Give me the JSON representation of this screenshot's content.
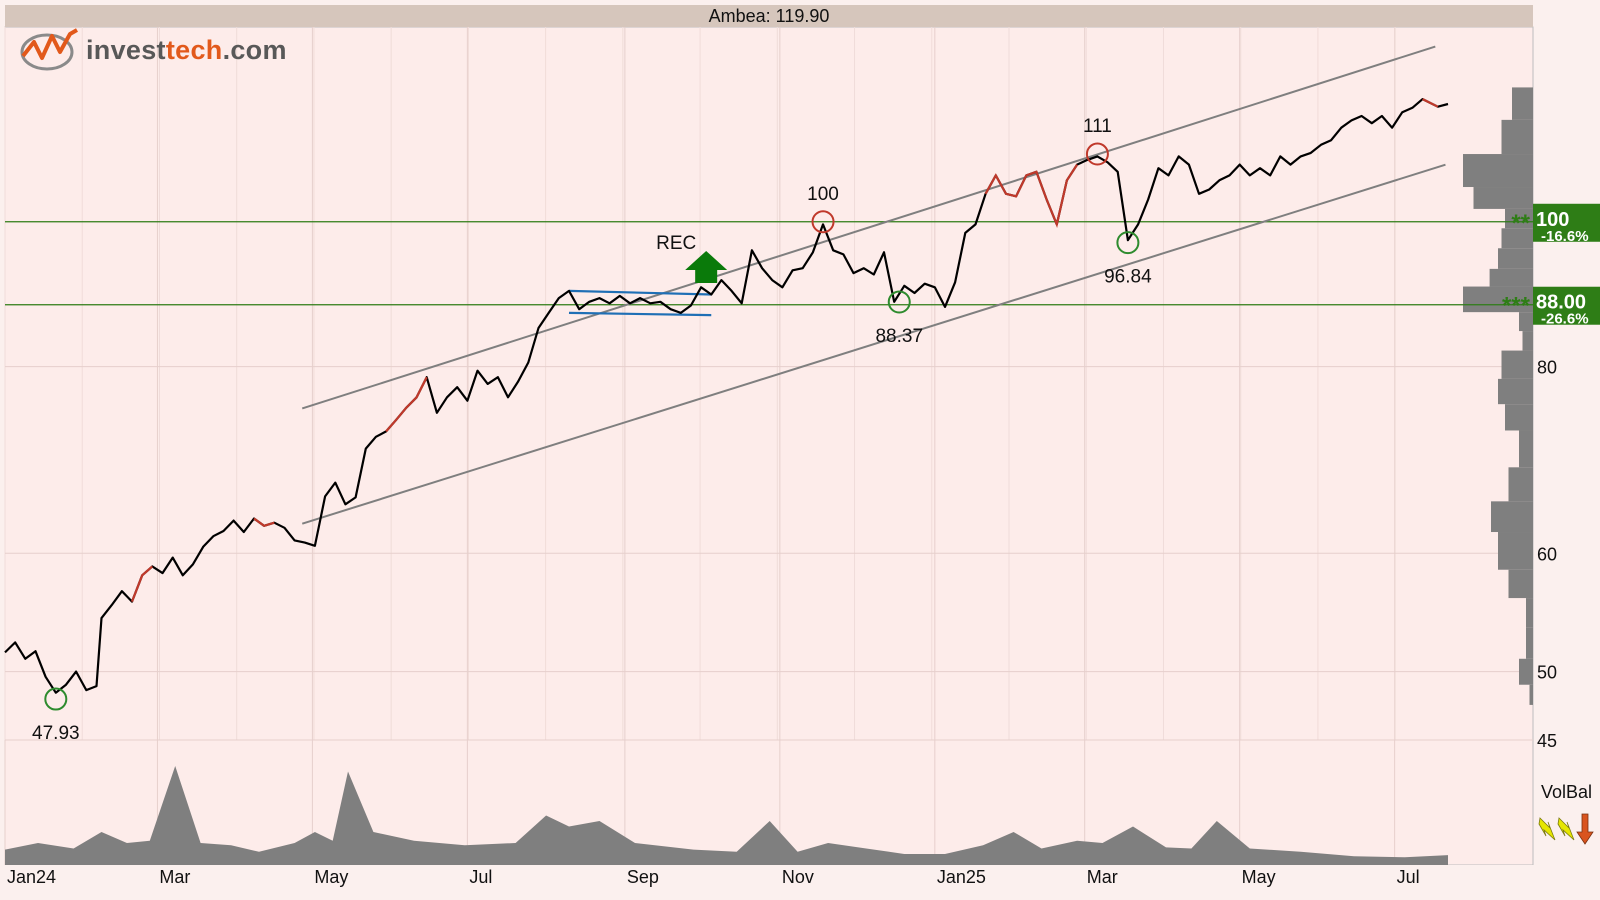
{
  "header": {
    "title": "Ambea: 119.90"
  },
  "logo": {
    "brand_prefix": "invest",
    "brand_accent": "tech",
    "brand_suffix": ".com"
  },
  "chart_data": {
    "type": "line",
    "title": "Ambea: 119.90",
    "x_range": [
      "2024-01-01",
      "2025-07-22"
    ],
    "x_ticks": [
      {
        "label": "Jan24",
        "date": "2024-01-01"
      },
      {
        "label": "Mar",
        "date": "2024-03-01"
      },
      {
        "label": "May",
        "date": "2024-05-01"
      },
      {
        "label": "Jul",
        "date": "2024-07-01"
      },
      {
        "label": "Sep",
        "date": "2024-09-01"
      },
      {
        "label": "Nov",
        "date": "2024-11-01"
      },
      {
        "label": "Jan25",
        "date": "2025-01-01"
      },
      {
        "label": "Mar",
        "date": "2025-03-01"
      },
      {
        "label": "May",
        "date": "2025-05-01"
      },
      {
        "label": "Jul",
        "date": "2025-07-01"
      }
    ],
    "y_scale": "log",
    "y_range": [
      45,
      135
    ],
    "y_ticks": [
      45,
      50,
      60,
      80
    ],
    "grid": true,
    "series": [
      {
        "name": "",
        "color": "#000000",
        "points": [
          [
            "2024-01-01",
            51.5
          ],
          [
            "2024-01-05",
            52.3
          ],
          [
            "2024-01-09",
            51.0
          ],
          [
            "2024-01-13",
            51.6
          ],
          [
            "2024-01-17",
            49.6
          ],
          [
            "2024-01-21",
            48.4
          ],
          [
            "2024-01-25",
            49.0
          ],
          [
            "2024-01-29",
            50.0
          ],
          [
            "2024-02-02",
            48.6
          ],
          [
            "2024-02-06",
            48.9
          ],
          [
            "2024-02-08",
            54.3
          ],
          [
            "2024-02-12",
            55.4
          ],
          [
            "2024-02-16",
            56.6
          ],
          [
            "2024-02-20",
            55.7
          ],
          [
            "2024-02-24",
            58.0
          ],
          [
            "2024-02-28",
            58.8
          ],
          [
            "2024-03-03",
            58.2
          ],
          [
            "2024-03-07",
            59.6
          ],
          [
            "2024-03-11",
            58.0
          ],
          [
            "2024-03-15",
            59.0
          ],
          [
            "2024-03-19",
            60.6
          ],
          [
            "2024-03-23",
            61.6
          ],
          [
            "2024-03-27",
            62.1
          ],
          [
            "2024-03-31",
            63.1
          ],
          [
            "2024-04-04",
            62.0
          ],
          [
            "2024-04-08",
            63.3
          ],
          [
            "2024-04-12",
            62.6
          ],
          [
            "2024-04-16",
            62.9
          ],
          [
            "2024-04-20",
            62.4
          ],
          [
            "2024-04-24",
            61.2
          ],
          [
            "2024-04-28",
            61.0
          ],
          [
            "2024-05-02",
            60.7
          ],
          [
            "2024-05-06",
            65.5
          ],
          [
            "2024-05-10",
            66.9
          ],
          [
            "2024-05-14",
            64.7
          ],
          [
            "2024-05-18",
            65.4
          ],
          [
            "2024-05-22",
            70.5
          ],
          [
            "2024-05-26",
            71.8
          ],
          [
            "2024-05-30",
            72.4
          ],
          [
            "2024-06-03",
            73.7
          ],
          [
            "2024-06-07",
            75.1
          ],
          [
            "2024-06-11",
            76.3
          ],
          [
            "2024-06-15",
            78.7
          ],
          [
            "2024-06-19",
            74.5
          ],
          [
            "2024-06-23",
            76.3
          ],
          [
            "2024-06-27",
            77.5
          ],
          [
            "2024-07-01",
            75.9
          ],
          [
            "2024-07-05",
            79.5
          ],
          [
            "2024-07-09",
            77.9
          ],
          [
            "2024-07-13",
            78.7
          ],
          [
            "2024-07-17",
            76.3
          ],
          [
            "2024-07-21",
            78.2
          ],
          [
            "2024-07-25",
            80.5
          ],
          [
            "2024-07-29",
            84.9
          ],
          [
            "2024-08-02",
            86.9
          ],
          [
            "2024-08-06",
            88.9
          ],
          [
            "2024-08-10",
            89.9
          ],
          [
            "2024-08-14",
            87.4
          ],
          [
            "2024-08-18",
            88.4
          ],
          [
            "2024-08-22",
            88.9
          ],
          [
            "2024-08-26",
            88.2
          ],
          [
            "2024-08-30",
            89.2
          ],
          [
            "2024-09-03",
            88.2
          ],
          [
            "2024-09-07",
            88.9
          ],
          [
            "2024-09-11",
            88.2
          ],
          [
            "2024-09-15",
            88.4
          ],
          [
            "2024-09-19",
            87.4
          ],
          [
            "2024-09-23",
            86.9
          ],
          [
            "2024-09-27",
            87.9
          ],
          [
            "2024-10-01",
            90.4
          ],
          [
            "2024-10-05",
            89.4
          ],
          [
            "2024-10-09",
            91.4
          ],
          [
            "2024-10-13",
            89.9
          ],
          [
            "2024-10-17",
            88.2
          ],
          [
            "2024-10-21",
            95.7
          ],
          [
            "2024-10-25",
            93.1
          ],
          [
            "2024-10-29",
            91.4
          ],
          [
            "2024-11-02",
            90.4
          ],
          [
            "2024-11-06",
            92.8
          ],
          [
            "2024-11-10",
            93.1
          ],
          [
            "2024-11-14",
            95.4
          ],
          [
            "2024-11-18",
            99.6
          ],
          [
            "2024-11-22",
            95.7
          ],
          [
            "2024-11-26",
            95.1
          ],
          [
            "2024-11-30",
            92.4
          ],
          [
            "2024-12-04",
            93.1
          ],
          [
            "2024-12-08",
            92.2
          ],
          [
            "2024-12-12",
            95.4
          ],
          [
            "2024-12-16",
            88.4
          ],
          [
            "2024-12-20",
            90.6
          ],
          [
            "2024-12-24",
            89.6
          ],
          [
            "2024-12-28",
            90.9
          ],
          [
            "2025-01-01",
            90.4
          ],
          [
            "2025-01-05",
            87.7
          ],
          [
            "2025-01-09",
            91.1
          ],
          [
            "2025-01-13",
            98.3
          ],
          [
            "2025-01-17",
            99.6
          ],
          [
            "2025-01-21",
            104.4
          ],
          [
            "2025-01-25",
            107.4
          ],
          [
            "2025-01-29",
            104.4
          ],
          [
            "2025-02-02",
            104.0
          ],
          [
            "2025-02-06",
            107.4
          ],
          [
            "2025-02-10",
            108.0
          ],
          [
            "2025-02-14",
            103.5
          ],
          [
            "2025-02-18",
            99.6
          ],
          [
            "2025-02-22",
            106.6
          ],
          [
            "2025-02-26",
            109.2
          ],
          [
            "2025-03-02",
            110.0
          ],
          [
            "2025-03-06",
            110.6
          ],
          [
            "2025-03-10",
            109.6
          ],
          [
            "2025-03-14",
            108.0
          ],
          [
            "2025-03-18",
            97.2
          ],
          [
            "2025-03-22",
            99.6
          ],
          [
            "2025-03-26",
            103.5
          ],
          [
            "2025-03-30",
            108.6
          ],
          [
            "2025-04-03",
            107.4
          ],
          [
            "2025-04-07",
            110.6
          ],
          [
            "2025-04-11",
            109.2
          ],
          [
            "2025-04-15",
            104.4
          ],
          [
            "2025-04-19",
            105.1
          ],
          [
            "2025-04-23",
            106.6
          ],
          [
            "2025-04-27",
            107.4
          ],
          [
            "2025-05-01",
            109.2
          ],
          [
            "2025-05-05",
            107.4
          ],
          [
            "2025-05-09",
            108.6
          ],
          [
            "2025-05-13",
            107.4
          ],
          [
            "2025-05-17",
            110.6
          ],
          [
            "2025-05-21",
            109.2
          ],
          [
            "2025-05-25",
            110.6
          ],
          [
            "2025-05-29",
            111.2
          ],
          [
            "2025-06-02",
            112.6
          ],
          [
            "2025-06-06",
            113.4
          ],
          [
            "2025-06-10",
            115.6
          ],
          [
            "2025-06-14",
            116.9
          ],
          [
            "2025-06-18",
            117.7
          ],
          [
            "2025-06-22",
            116.4
          ],
          [
            "2025-06-26",
            117.7
          ],
          [
            "2025-06-30",
            115.6
          ],
          [
            "2025-07-04",
            118.4
          ],
          [
            "2025-07-08",
            119.2
          ],
          [
            "2025-07-12",
            120.8
          ],
          [
            "2025-07-18",
            119.4
          ],
          [
            "2025-07-22",
            119.9
          ]
        ]
      }
    ],
    "red_segments": [
      [
        "2024-02-18",
        "2024-02-28"
      ],
      [
        "2024-04-07",
        "2024-04-17"
      ],
      [
        "2024-05-27",
        "2024-06-16"
      ],
      [
        "2024-08-09",
        "2024-08-13"
      ],
      [
        "2025-01-21",
        "2025-02-26"
      ],
      [
        "2025-07-10",
        "2025-07-18"
      ]
    ],
    "trend_channel": {
      "color": "#7f7f7f",
      "upper": [
        [
          "2024-04-27",
          75.0
        ],
        [
          "2025-07-17",
          131.0
        ]
      ],
      "lower": [
        [
          "2024-04-27",
          62.8
        ],
        [
          "2025-07-21",
          109.2
        ]
      ]
    },
    "rectangle_pattern": {
      "color": "#1f6fb5",
      "top": [
        [
          "2024-08-10",
          89.9
        ],
        [
          "2024-10-05",
          89.4
        ]
      ],
      "bottom": [
        [
          "2024-08-10",
          86.9
        ],
        [
          "2024-10-05",
          86.6
        ]
      ]
    },
    "signal": {
      "label": "REC",
      "date": "2024-10-03",
      "value": 91.0,
      "direction": "up",
      "color": "#0a7a0a"
    },
    "extrema": [
      {
        "label": "47.93",
        "date": "2024-01-21",
        "value": 47.93,
        "kind": "bottom",
        "color": "#2e8b2e"
      },
      {
        "label": "100",
        "date": "2024-11-18",
        "value": 100,
        "kind": "top",
        "color": "#c0392b"
      },
      {
        "label": "88.37",
        "date": "2024-12-18",
        "value": 88.37,
        "kind": "bottom",
        "color": "#2e8b2e"
      },
      {
        "label": "111",
        "date": "2025-03-06",
        "value": 111,
        "kind": "top",
        "color": "#c0392b"
      },
      {
        "label": "96.84",
        "date": "2025-03-18",
        "value": 96.84,
        "kind": "bottom",
        "color": "#2e8b2e"
      }
    ],
    "support_resistance": [
      {
        "value": 100.0,
        "label": "100",
        "change": "-16.6%",
        "stars": "**",
        "color": "#2e7d16"
      },
      {
        "value": 88.0,
        "label": "88.00",
        "change": "-26.6%",
        "stars": "***",
        "color": "#2e7d16"
      }
    ],
    "volume_profile": [
      {
        "from": 117.0,
        "to": 123.0,
        "volume": 0.3
      },
      {
        "from": 111.0,
        "to": 117.0,
        "volume": 0.45
      },
      {
        "from": 105.5,
        "to": 111.0,
        "volume": 1.0
      },
      {
        "from": 102.0,
        "to": 105.5,
        "volume": 0.85
      },
      {
        "from": 99.0,
        "to": 102.0,
        "volume": 0.4
      },
      {
        "from": 96.0,
        "to": 99.0,
        "volume": 0.45
      },
      {
        "from": 93.0,
        "to": 96.0,
        "volume": 0.5
      },
      {
        "from": 90.5,
        "to": 93.0,
        "volume": 0.62
      },
      {
        "from": 87.0,
        "to": 90.5,
        "volume": 1.0
      },
      {
        "from": 84.5,
        "to": 87.0,
        "volume": 0.2
      },
      {
        "from": 82.0,
        "to": 84.5,
        "volume": 0.15
      },
      {
        "from": 78.5,
        "to": 82.0,
        "volume": 0.45
      },
      {
        "from": 75.5,
        "to": 78.5,
        "volume": 0.5
      },
      {
        "from": 72.5,
        "to": 75.5,
        "volume": 0.4
      },
      {
        "from": 68.5,
        "to": 72.5,
        "volume": 0.2
      },
      {
        "from": 65.0,
        "to": 68.5,
        "volume": 0.35
      },
      {
        "from": 62.0,
        "to": 65.0,
        "volume": 0.6
      },
      {
        "from": 58.5,
        "to": 62.0,
        "volume": 0.5
      },
      {
        "from": 56.0,
        "to": 58.5,
        "volume": 0.35
      },
      {
        "from": 53.5,
        "to": 56.0,
        "volume": 0.1
      },
      {
        "from": 51.0,
        "to": 53.5,
        "volume": 0.1
      },
      {
        "from": 49.0,
        "to": 51.0,
        "volume": 0.2
      },
      {
        "from": 47.5,
        "to": 49.0,
        "volume": 0.05
      }
    ],
    "volume": {
      "color": "#7f7f7f",
      "points": [
        [
          "2024-01-01",
          0.14
        ],
        [
          "2024-01-14",
          0.2
        ],
        [
          "2024-01-28",
          0.15
        ],
        [
          "2024-02-08",
          0.3
        ],
        [
          "2024-02-18",
          0.2
        ],
        [
          "2024-02-27",
          0.22
        ],
        [
          "2024-03-08",
          0.9
        ],
        [
          "2024-03-18",
          0.2
        ],
        [
          "2024-03-30",
          0.18
        ],
        [
          "2024-04-10",
          0.12
        ],
        [
          "2024-04-24",
          0.2
        ],
        [
          "2024-05-02",
          0.3
        ],
        [
          "2024-05-09",
          0.22
        ],
        [
          "2024-05-15",
          0.85
        ],
        [
          "2024-05-25",
          0.3
        ],
        [
          "2024-06-10",
          0.22
        ],
        [
          "2024-06-30",
          0.18
        ],
        [
          "2024-07-20",
          0.2
        ],
        [
          "2024-08-01",
          0.45
        ],
        [
          "2024-08-10",
          0.35
        ],
        [
          "2024-08-22",
          0.4
        ],
        [
          "2024-09-05",
          0.2
        ],
        [
          "2024-09-28",
          0.14
        ],
        [
          "2024-10-15",
          0.12
        ],
        [
          "2024-10-28",
          0.4
        ],
        [
          "2024-11-08",
          0.12
        ],
        [
          "2024-11-20",
          0.2
        ],
        [
          "2024-12-05",
          0.15
        ],
        [
          "2024-12-20",
          0.1
        ],
        [
          "2025-01-05",
          0.1
        ],
        [
          "2025-01-20",
          0.18
        ],
        [
          "2025-02-01",
          0.3
        ],
        [
          "2025-02-12",
          0.15
        ],
        [
          "2025-02-26",
          0.22
        ],
        [
          "2025-03-08",
          0.2
        ],
        [
          "2025-03-20",
          0.35
        ],
        [
          "2025-04-02",
          0.16
        ],
        [
          "2025-04-12",
          0.15
        ],
        [
          "2025-04-22",
          0.4
        ],
        [
          "2025-05-05",
          0.15
        ],
        [
          "2025-05-25",
          0.12
        ],
        [
          "2025-06-15",
          0.08
        ],
        [
          "2025-07-05",
          0.07
        ],
        [
          "2025-07-22",
          0.09
        ]
      ]
    },
    "volume_balance": {
      "label": "VolBal",
      "arrows": [
        {
          "direction": "sideways",
          "color": "#e6e600"
        },
        {
          "direction": "sideways",
          "color": "#e6e600"
        },
        {
          "direction": "down",
          "color": "#d9541e"
        }
      ]
    }
  }
}
